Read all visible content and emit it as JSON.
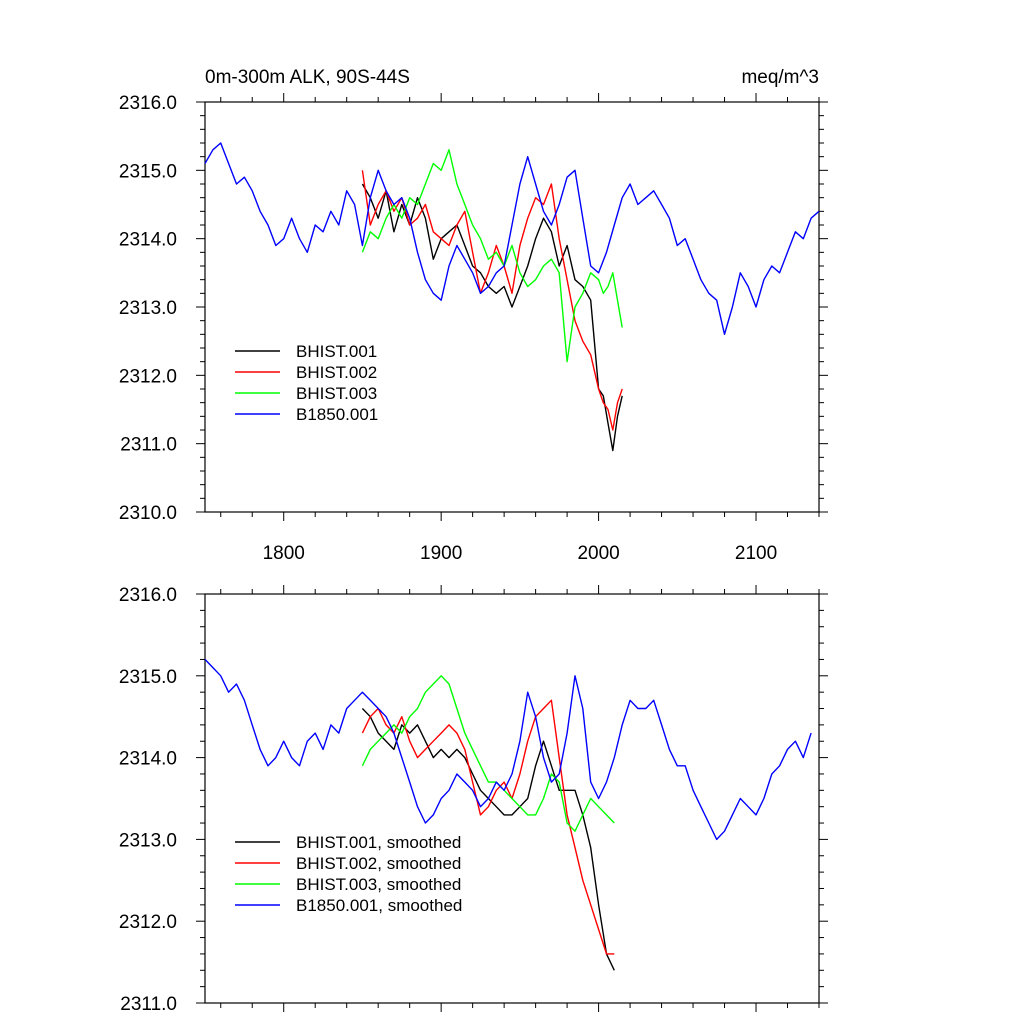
{
  "colors": {
    "BHIST.001": "#000000",
    "BHIST.002": "#ff0000",
    "BHIST.003": "#00ff00",
    "B1850.001": "#0000ff"
  },
  "chart_data": [
    {
      "type": "line",
      "title": "0m-300m ALK, 90S-44S",
      "units": "meq/m^3",
      "xlim": [
        1750,
        2140
      ],
      "ylim": [
        2310.0,
        2316.0
      ],
      "xticks": [
        1800,
        1900,
        2000,
        2100
      ],
      "xtick_labels": [
        "1800",
        "1900",
        "2000",
        "2100"
      ],
      "yticks": [
        2310.0,
        2311.0,
        2312.0,
        2313.0,
        2314.0,
        2315.0,
        2316.0
      ],
      "ytick_labels": [
        "2310.0",
        "2311.0",
        "2312.0",
        "2313.0",
        "2314.0",
        "2315.0",
        "2316.0"
      ],
      "legend_position": "bottom-left",
      "series": [
        {
          "name": "BHIST.001",
          "color": "#000000",
          "x": [
            1850,
            1855,
            1860,
            1865,
            1870,
            1875,
            1880,
            1885,
            1890,
            1895,
            1900,
            1905,
            1910,
            1915,
            1920,
            1925,
            1930,
            1935,
            1940,
            1945,
            1950,
            1955,
            1960,
            1965,
            1970,
            1975,
            1980,
            1985,
            1990,
            1995,
            2000,
            2003,
            2006,
            2009,
            2012,
            2015
          ],
          "y": [
            2314.8,
            2314.6,
            2314.3,
            2314.7,
            2314.1,
            2314.5,
            2314.2,
            2314.6,
            2314.3,
            2313.7,
            2314.0,
            2314.1,
            2314.2,
            2313.9,
            2313.6,
            2313.5,
            2313.3,
            2313.2,
            2313.3,
            2313.0,
            2313.3,
            2313.6,
            2314.0,
            2314.3,
            2314.1,
            2313.6,
            2313.9,
            2313.4,
            2313.3,
            2313.1,
            2311.8,
            2311.7,
            2311.3,
            2310.9,
            2311.4,
            2311.7
          ]
        },
        {
          "name": "BHIST.002",
          "color": "#ff0000",
          "x": [
            1850,
            1855,
            1860,
            1865,
            1870,
            1875,
            1880,
            1885,
            1890,
            1895,
            1900,
            1905,
            1910,
            1915,
            1920,
            1925,
            1930,
            1935,
            1940,
            1945,
            1950,
            1955,
            1960,
            1965,
            1970,
            1975,
            1980,
            1985,
            1990,
            1995,
            2000,
            2003,
            2006,
            2009,
            2012,
            2015
          ],
          "y": [
            2315.0,
            2314.2,
            2314.5,
            2314.7,
            2314.4,
            2314.6,
            2314.2,
            2314.3,
            2314.5,
            2314.1,
            2314.0,
            2313.9,
            2314.2,
            2314.4,
            2313.8,
            2313.2,
            2313.5,
            2313.9,
            2313.6,
            2313.2,
            2313.9,
            2314.3,
            2314.6,
            2314.5,
            2314.8,
            2314.0,
            2313.4,
            2312.8,
            2312.5,
            2312.3,
            2311.8,
            2311.6,
            2311.5,
            2311.2,
            2311.6,
            2311.8
          ]
        },
        {
          "name": "BHIST.003",
          "color": "#00ff00",
          "x": [
            1850,
            1855,
            1860,
            1865,
            1870,
            1875,
            1880,
            1885,
            1890,
            1895,
            1900,
            1905,
            1910,
            1915,
            1920,
            1925,
            1930,
            1935,
            1940,
            1945,
            1950,
            1955,
            1960,
            1965,
            1970,
            1975,
            1980,
            1985,
            1990,
            1995,
            2000,
            2003,
            2006,
            2009,
            2012,
            2015
          ],
          "y": [
            2313.8,
            2314.1,
            2314.0,
            2314.3,
            2314.5,
            2314.3,
            2314.6,
            2314.5,
            2314.8,
            2315.1,
            2315.0,
            2315.3,
            2314.8,
            2314.5,
            2314.2,
            2314.0,
            2313.7,
            2313.8,
            2313.6,
            2313.9,
            2313.5,
            2313.3,
            2313.4,
            2313.6,
            2313.7,
            2313.5,
            2312.2,
            2313.0,
            2313.2,
            2313.5,
            2313.4,
            2313.2,
            2313.3,
            2313.5,
            2313.1,
            2312.7
          ]
        },
        {
          "name": "B1850.001",
          "color": "#0000ff",
          "x": [
            1750,
            1755,
            1760,
            1765,
            1770,
            1775,
            1780,
            1785,
            1790,
            1795,
            1800,
            1805,
            1810,
            1815,
            1820,
            1825,
            1830,
            1835,
            1840,
            1845,
            1850,
            1855,
            1860,
            1865,
            1870,
            1875,
            1880,
            1885,
            1890,
            1895,
            1900,
            1905,
            1910,
            1915,
            1920,
            1925,
            1930,
            1935,
            1940,
            1945,
            1950,
            1955,
            1960,
            1965,
            1970,
            1975,
            1980,
            1985,
            1990,
            1995,
            2000,
            2005,
            2010,
            2015,
            2020,
            2025,
            2030,
            2035,
            2040,
            2045,
            2050,
            2055,
            2060,
            2065,
            2070,
            2075,
            2080,
            2085,
            2090,
            2095,
            2100,
            2105,
            2110,
            2115,
            2120,
            2125,
            2130,
            2135,
            2140
          ],
          "y": [
            2315.1,
            2315.3,
            2315.4,
            2315.1,
            2314.8,
            2314.9,
            2314.7,
            2314.4,
            2314.2,
            2313.9,
            2314.0,
            2314.3,
            2314.0,
            2313.8,
            2314.2,
            2314.1,
            2314.4,
            2314.2,
            2314.7,
            2314.5,
            2313.9,
            2314.6,
            2315.0,
            2314.7,
            2314.5,
            2314.6,
            2314.3,
            2313.8,
            2313.4,
            2313.2,
            2313.1,
            2313.6,
            2313.9,
            2313.7,
            2313.5,
            2313.2,
            2313.3,
            2313.5,
            2313.6,
            2314.2,
            2314.8,
            2315.2,
            2314.8,
            2314.4,
            2314.2,
            2314.5,
            2314.9,
            2315.0,
            2314.3,
            2313.6,
            2313.5,
            2313.8,
            2314.2,
            2314.6,
            2314.8,
            2314.5,
            2314.6,
            2314.7,
            2314.5,
            2314.3,
            2313.9,
            2314.0,
            2313.7,
            2313.4,
            2313.2,
            2313.1,
            2312.6,
            2313.0,
            2313.5,
            2313.3,
            2313.0,
            2313.4,
            2313.6,
            2313.5,
            2313.8,
            2314.1,
            2314.0,
            2314.3,
            2314.4
          ]
        }
      ]
    },
    {
      "type": "line",
      "title": "",
      "units": "",
      "xlim": [
        1750,
        2140
      ],
      "ylim": [
        2311.0,
        2316.0
      ],
      "xticks": [
        1800,
        1900,
        2000,
        2100
      ],
      "xtick_labels": [],
      "yticks": [
        2311.0,
        2312.0,
        2313.0,
        2314.0,
        2315.0,
        2316.0
      ],
      "ytick_labels": [
        "2311.0",
        "2312.0",
        "2313.0",
        "2314.0",
        "2315.0",
        "2316.0"
      ],
      "legend_position": "bottom-left",
      "series": [
        {
          "name": "BHIST.001, smoothed",
          "color": "#000000",
          "x": [
            1850,
            1855,
            1860,
            1865,
            1870,
            1875,
            1880,
            1885,
            1890,
            1895,
            1900,
            1905,
            1910,
            1915,
            1920,
            1925,
            1930,
            1935,
            1940,
            1945,
            1950,
            1955,
            1960,
            1965,
            1970,
            1975,
            1980,
            1985,
            1990,
            1995,
            2000,
            2005,
            2010
          ],
          "y": [
            2314.6,
            2314.5,
            2314.3,
            2314.2,
            2314.1,
            2314.4,
            2314.3,
            2314.4,
            2314.2,
            2314.0,
            2314.1,
            2314.0,
            2314.1,
            2314.0,
            2313.8,
            2313.6,
            2313.5,
            2313.4,
            2313.3,
            2313.3,
            2313.4,
            2313.5,
            2313.9,
            2314.2,
            2313.9,
            2313.6,
            2313.6,
            2313.6,
            2313.3,
            2312.9,
            2312.2,
            2311.6,
            2311.4
          ]
        },
        {
          "name": "BHIST.002, smoothed",
          "color": "#ff0000",
          "x": [
            1850,
            1855,
            1860,
            1865,
            1870,
            1875,
            1880,
            1885,
            1890,
            1895,
            1900,
            1905,
            1910,
            1915,
            1920,
            1925,
            1930,
            1935,
            1940,
            1945,
            1950,
            1955,
            1960,
            1965,
            1970,
            1975,
            1980,
            1985,
            1990,
            1995,
            2000,
            2005,
            2010
          ],
          "y": [
            2314.3,
            2314.5,
            2314.6,
            2314.4,
            2314.3,
            2314.5,
            2314.2,
            2314.0,
            2314.1,
            2314.2,
            2314.3,
            2314.4,
            2314.3,
            2314.1,
            2313.7,
            2313.3,
            2313.4,
            2313.6,
            2313.7,
            2313.5,
            2313.8,
            2314.2,
            2314.5,
            2314.6,
            2314.7,
            2314.0,
            2313.3,
            2312.9,
            2312.5,
            2312.2,
            2311.9,
            2311.6,
            2311.6
          ]
        },
        {
          "name": "BHIST.003, smoothed",
          "color": "#00ff00",
          "x": [
            1850,
            1855,
            1860,
            1865,
            1870,
            1875,
            1880,
            1885,
            1890,
            1895,
            1900,
            1905,
            1910,
            1915,
            1920,
            1925,
            1930,
            1935,
            1940,
            1945,
            1950,
            1955,
            1960,
            1965,
            1970,
            1975,
            1980,
            1985,
            1990,
            1995,
            2000,
            2005,
            2010
          ],
          "y": [
            2313.9,
            2314.1,
            2314.2,
            2314.3,
            2314.4,
            2314.3,
            2314.5,
            2314.6,
            2314.8,
            2314.9,
            2315.0,
            2314.9,
            2314.6,
            2314.3,
            2314.1,
            2313.9,
            2313.7,
            2313.7,
            2313.6,
            2313.5,
            2313.4,
            2313.3,
            2313.3,
            2313.5,
            2313.8,
            2313.7,
            2313.2,
            2313.1,
            2313.3,
            2313.5,
            2313.4,
            2313.3,
            2313.2
          ]
        },
        {
          "name": "B1850.001, smoothed",
          "color": "#0000ff",
          "x": [
            1750,
            1755,
            1760,
            1765,
            1770,
            1775,
            1780,
            1785,
            1790,
            1795,
            1800,
            1805,
            1810,
            1815,
            1820,
            1825,
            1830,
            1835,
            1840,
            1845,
            1850,
            1855,
            1860,
            1865,
            1870,
            1875,
            1880,
            1885,
            1890,
            1895,
            1900,
            1905,
            1910,
            1915,
            1920,
            1925,
            1930,
            1935,
            1940,
            1945,
            1950,
            1955,
            1960,
            1965,
            1970,
            1975,
            1980,
            1985,
            1990,
            1995,
            2000,
            2005,
            2010,
            2015,
            2020,
            2025,
            2030,
            2035,
            2040,
            2045,
            2050,
            2055,
            2060,
            2065,
            2070,
            2075,
            2080,
            2085,
            2090,
            2095,
            2100,
            2105,
            2110,
            2115,
            2120,
            2125,
            2130,
            2135
          ],
          "y": [
            2315.2,
            2315.1,
            2315.0,
            2314.8,
            2314.9,
            2314.7,
            2314.4,
            2314.1,
            2313.9,
            2314.0,
            2314.2,
            2314.0,
            2313.9,
            2314.2,
            2314.3,
            2314.1,
            2314.4,
            2314.3,
            2314.6,
            2314.7,
            2314.8,
            2314.7,
            2314.6,
            2314.5,
            2314.3,
            2314.0,
            2313.7,
            2313.4,
            2313.2,
            2313.3,
            2313.5,
            2313.6,
            2313.8,
            2313.7,
            2313.6,
            2313.4,
            2313.5,
            2313.7,
            2313.6,
            2313.8,
            2314.2,
            2314.8,
            2314.5,
            2314.0,
            2313.7,
            2313.8,
            2314.3,
            2315.0,
            2314.6,
            2313.7,
            2313.5,
            2313.7,
            2314.0,
            2314.4,
            2314.7,
            2314.6,
            2314.6,
            2314.7,
            2314.4,
            2314.1,
            2313.9,
            2313.9,
            2313.6,
            2313.4,
            2313.2,
            2313.0,
            2313.1,
            2313.3,
            2313.5,
            2313.4,
            2313.3,
            2313.5,
            2313.8,
            2313.9,
            2314.1,
            2314.2,
            2314.0,
            2314.3
          ]
        }
      ]
    }
  ]
}
